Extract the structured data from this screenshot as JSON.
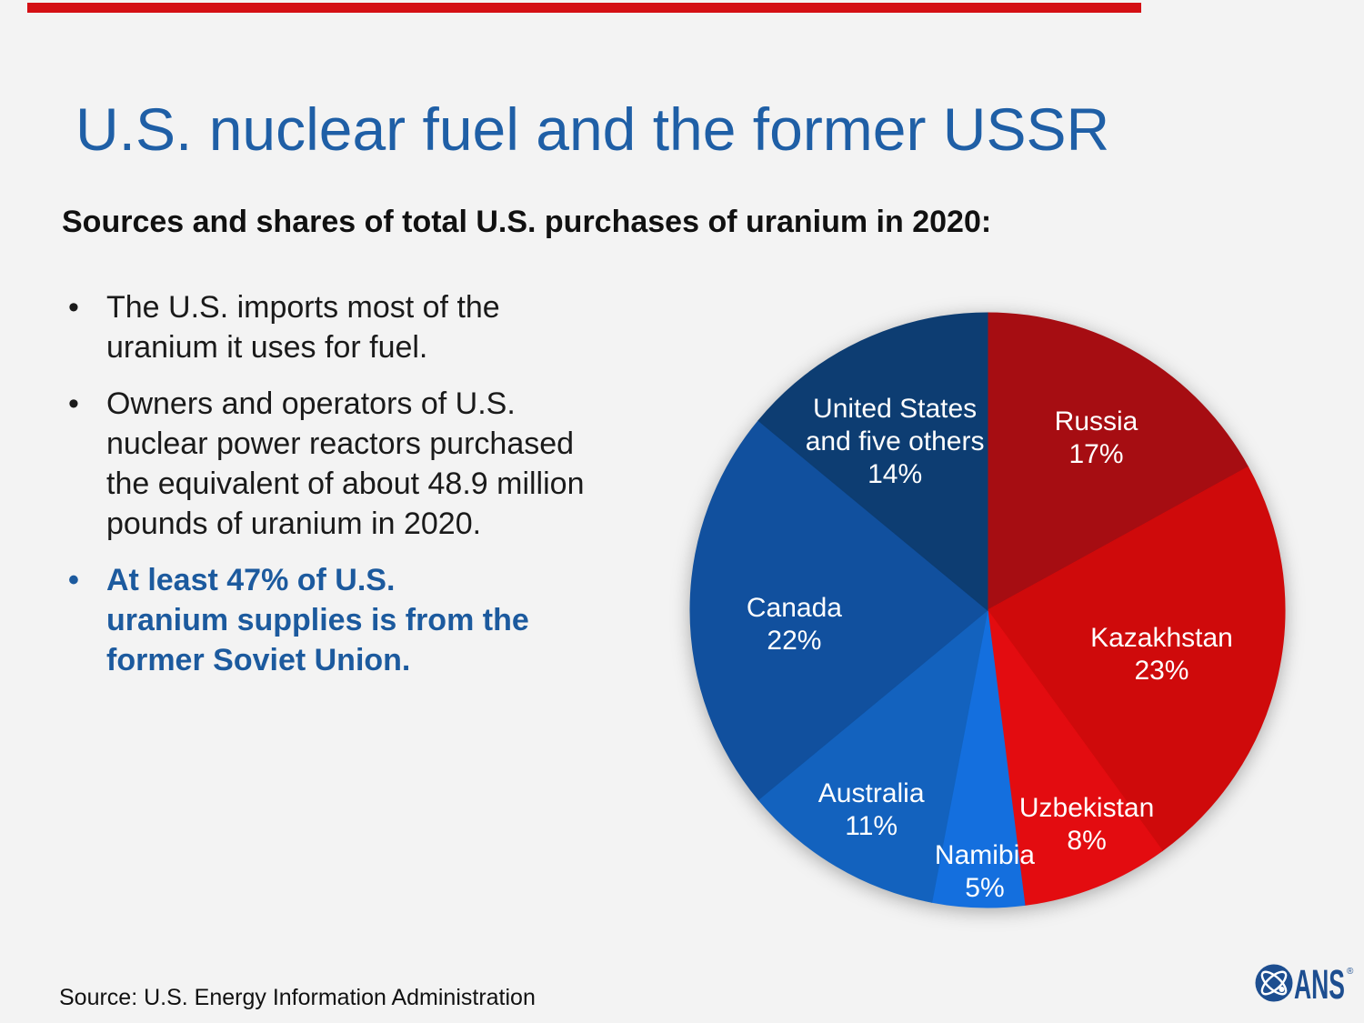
{
  "page": {
    "background_color": "#F3F3F3",
    "accent_bar_color": "#D40F14"
  },
  "header": {
    "title": "U.S. nuclear fuel and the former USSR",
    "title_color": "#1F5FA6",
    "subtitle": "Sources and shares of total U.S. purchases of uranium in 2020:"
  },
  "bullets": {
    "marker": "•",
    "emphasis_color": "#1C5A9E",
    "items": [
      {
        "lines": [
          "The U.S. imports most of the",
          "uranium it uses for fuel."
        ],
        "emphasis": false
      },
      {
        "lines": [
          "Owners and operators of U.S.",
          "nuclear power reactors purchased",
          "the equivalent of about 48.9 million",
          "pounds of uranium in 2020."
        ],
        "emphasis": false
      },
      {
        "lines": [
          "At least 47% of U.S.",
          "uranium supplies is from the",
          "former Soviet Union."
        ],
        "emphasis": true
      }
    ]
  },
  "chart_data": {
    "type": "pie",
    "title": "Sources and shares of total U.S. purchases of uranium in 2020",
    "units": "percent of total U.S. uranium purchases",
    "direction": "clockwise",
    "start_angle_deg": 0,
    "label_color": "#FFFFFF",
    "slices": [
      {
        "label": "Russia",
        "value": 17,
        "pct_text": "17%",
        "color": "#A60D12",
        "label_lines": [
          "Russia"
        ],
        "label_radius": 0.67,
        "label_offset": [
          8,
          0
        ]
      },
      {
        "label": "Kazakhstan",
        "value": 23,
        "pct_text": "23%",
        "color": "#CF0A0B",
        "label_lines": [
          "Kazakhstan"
        ],
        "label_radius": 0.6,
        "label_offset": [
          0,
          6
        ]
      },
      {
        "label": "Uzbekistan",
        "value": 8,
        "pct_text": "8%",
        "color": "#E30C10",
        "label_lines": [
          "Uzbekistan"
        ],
        "label_radius": 0.79,
        "label_offset": [
          14,
          -4
        ]
      },
      {
        "label": "Namibia",
        "value": 5,
        "pct_text": "5%",
        "color": "#146FDE",
        "label_lines": [
          "Namibia"
        ],
        "label_radius": 0.88,
        "label_offset": [
          6,
          0
        ]
      },
      {
        "label": "Australia",
        "value": 11,
        "pct_text": "11%",
        "color": "#1362BE",
        "label_lines": [
          "Australia"
        ],
        "label_radius": 0.78,
        "label_offset": [
          2,
          0
        ]
      },
      {
        "label": "Canada",
        "value": 22,
        "pct_text": "22%",
        "color": "#11509E",
        "label_lines": [
          "Canada"
        ],
        "label_radius": 0.65,
        "label_offset": [
          0,
          16
        ]
      },
      {
        "label": "United States and five others",
        "value": 14,
        "pct_text": "14%",
        "color": "#0D3D72",
        "label_lines": [
          "United States",
          "and five others"
        ],
        "label_radius": 0.66,
        "label_offset": [
          -10,
          10
        ]
      }
    ]
  },
  "footer": {
    "source": "Source: U.S. Energy Information Administration"
  },
  "logo": {
    "name": "American Nuclear Society",
    "text": "ANS",
    "registered_mark": "®",
    "color": "#1D4E90"
  }
}
